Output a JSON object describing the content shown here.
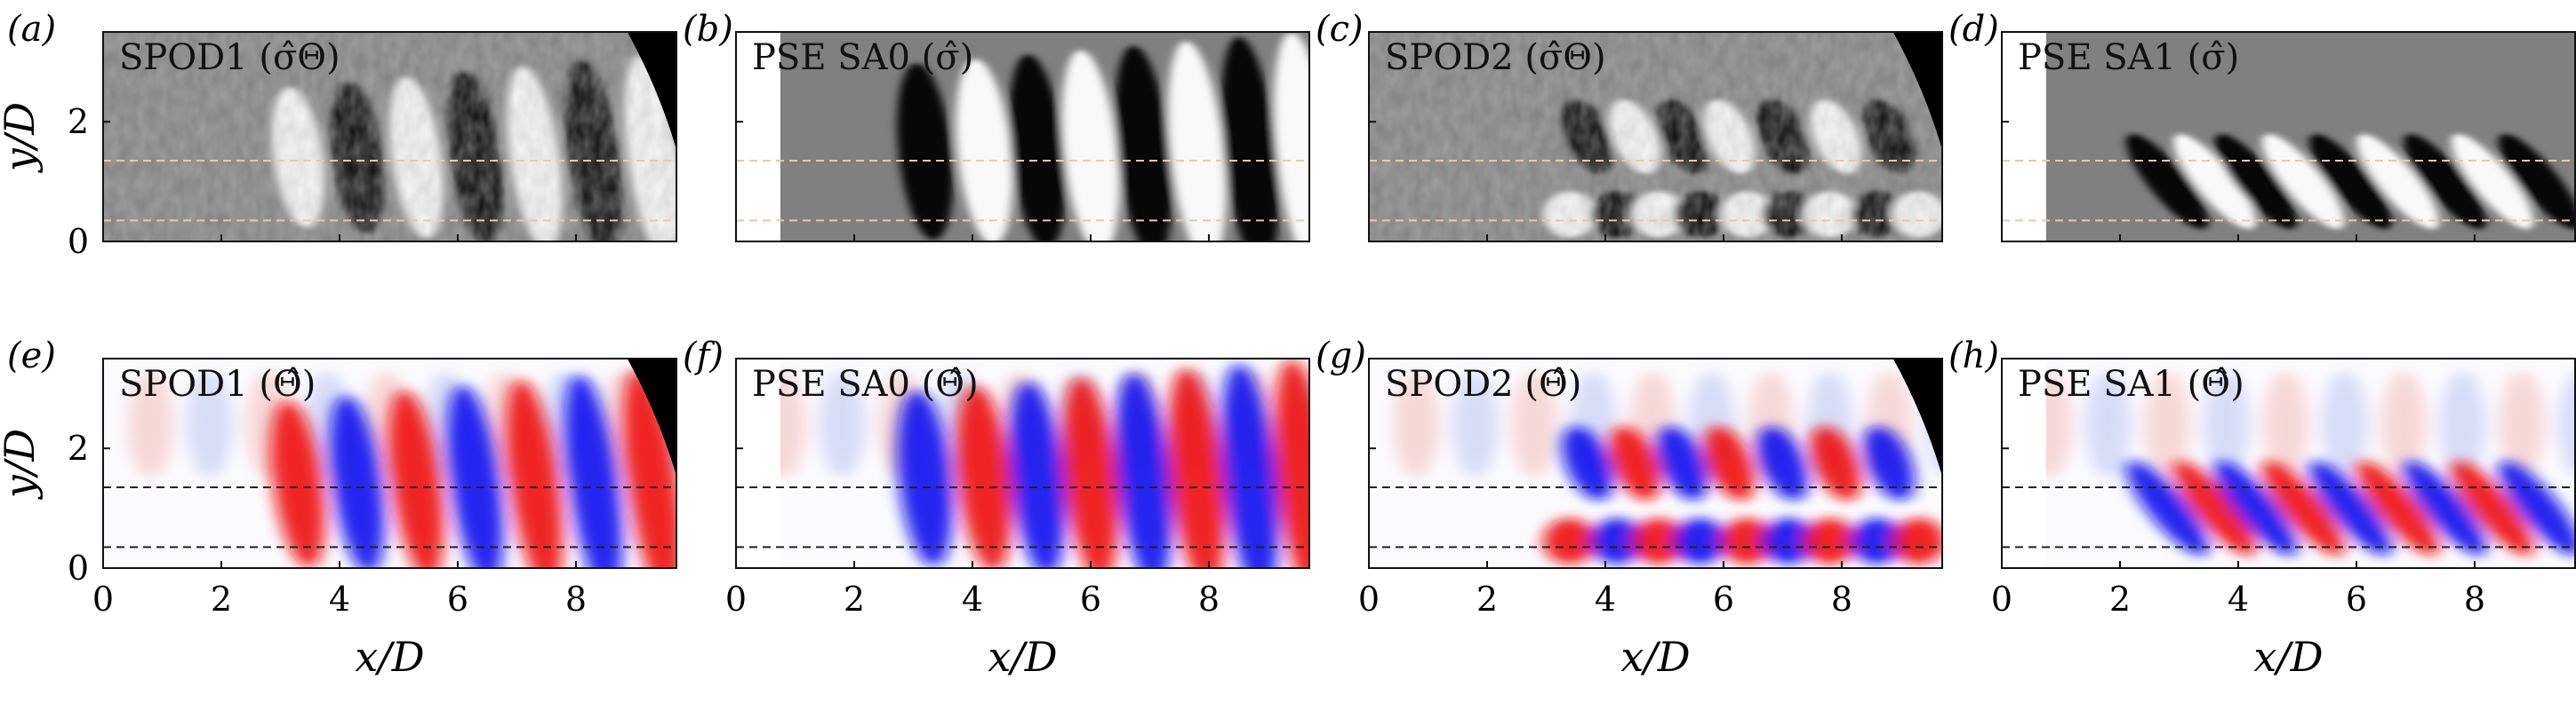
{
  "figure": {
    "axes": {
      "xlabel": "x/D",
      "ylabel": "y/D",
      "xticks": [
        "0",
        "2",
        "4",
        "6",
        "8"
      ],
      "yticks": [
        "0",
        "2"
      ]
    },
    "colors": {
      "red": "#ee1111",
      "blue": "#1111ee",
      "light_red": "#f6cfcf",
      "light_blue": "#cfd4f6",
      "gray": "#808080",
      "black": "#000000",
      "white": "#ffffff",
      "top_guide": "#e8c9a8",
      "bottom_guide": "#333333"
    },
    "panels": [
      {
        "letter": "(a)",
        "title": "SPOD1 (σ̂Θ)",
        "kind": "gray",
        "noisy": true,
        "has_inlet": false,
        "mode": "spod1"
      },
      {
        "letter": "(b)",
        "title": "PSE SA0 (σ̂)",
        "kind": "gray",
        "noisy": false,
        "has_inlet": true,
        "mode": "sa0"
      },
      {
        "letter": "(c)",
        "title": "SPOD2 (σ̂Θ)",
        "kind": "gray",
        "noisy": true,
        "has_inlet": false,
        "mode": "spod2"
      },
      {
        "letter": "(d)",
        "title": "PSE SA1 (σ̂)",
        "kind": "gray",
        "noisy": false,
        "has_inlet": true,
        "mode": "sa1"
      },
      {
        "letter": "(e)",
        "title": "SPOD1 (Θ̂)",
        "kind": "color",
        "noisy": false,
        "has_inlet": false,
        "mode": "spod1"
      },
      {
        "letter": "(f)",
        "title": "PSE SA0 (Θ̂)",
        "kind": "color",
        "noisy": false,
        "has_inlet": true,
        "mode": "sa0"
      },
      {
        "letter": "(g)",
        "title": "SPOD2 (Θ̂)",
        "kind": "color",
        "noisy": false,
        "has_inlet": false,
        "mode": "spod2"
      },
      {
        "letter": "(h)",
        "title": "PSE SA1 (Θ̂)",
        "kind": "color",
        "noisy": false,
        "has_inlet": true,
        "mode": "sa1"
      }
    ],
    "wave_centers": {
      "spod1": [
        3.3,
        4.3,
        5.3,
        6.3,
        7.3,
        8.3,
        9.3
      ],
      "sa0": [
        3.2,
        4.2,
        5.1,
        6.0,
        6.9,
        7.8,
        8.7,
        9.6
      ],
      "spod2_upper": [
        3.7,
        4.5,
        5.3,
        6.1,
        7.0,
        7.9,
        8.8
      ],
      "spod2_lower": [
        3.4,
        4.2,
        4.9,
        5.6,
        6.4,
        7.1,
        7.8,
        8.6,
        9.3
      ],
      "sa1": [
        2.8,
        3.6,
        4.3,
        5.1,
        5.9,
        6.7,
        7.5,
        8.3,
        9.1
      ]
    },
    "guide_lines_yD": [
      1.35,
      0.35
    ],
    "x_range": [
      0,
      9.7
    ],
    "y_range": [
      0,
      3.5
    ]
  }
}
